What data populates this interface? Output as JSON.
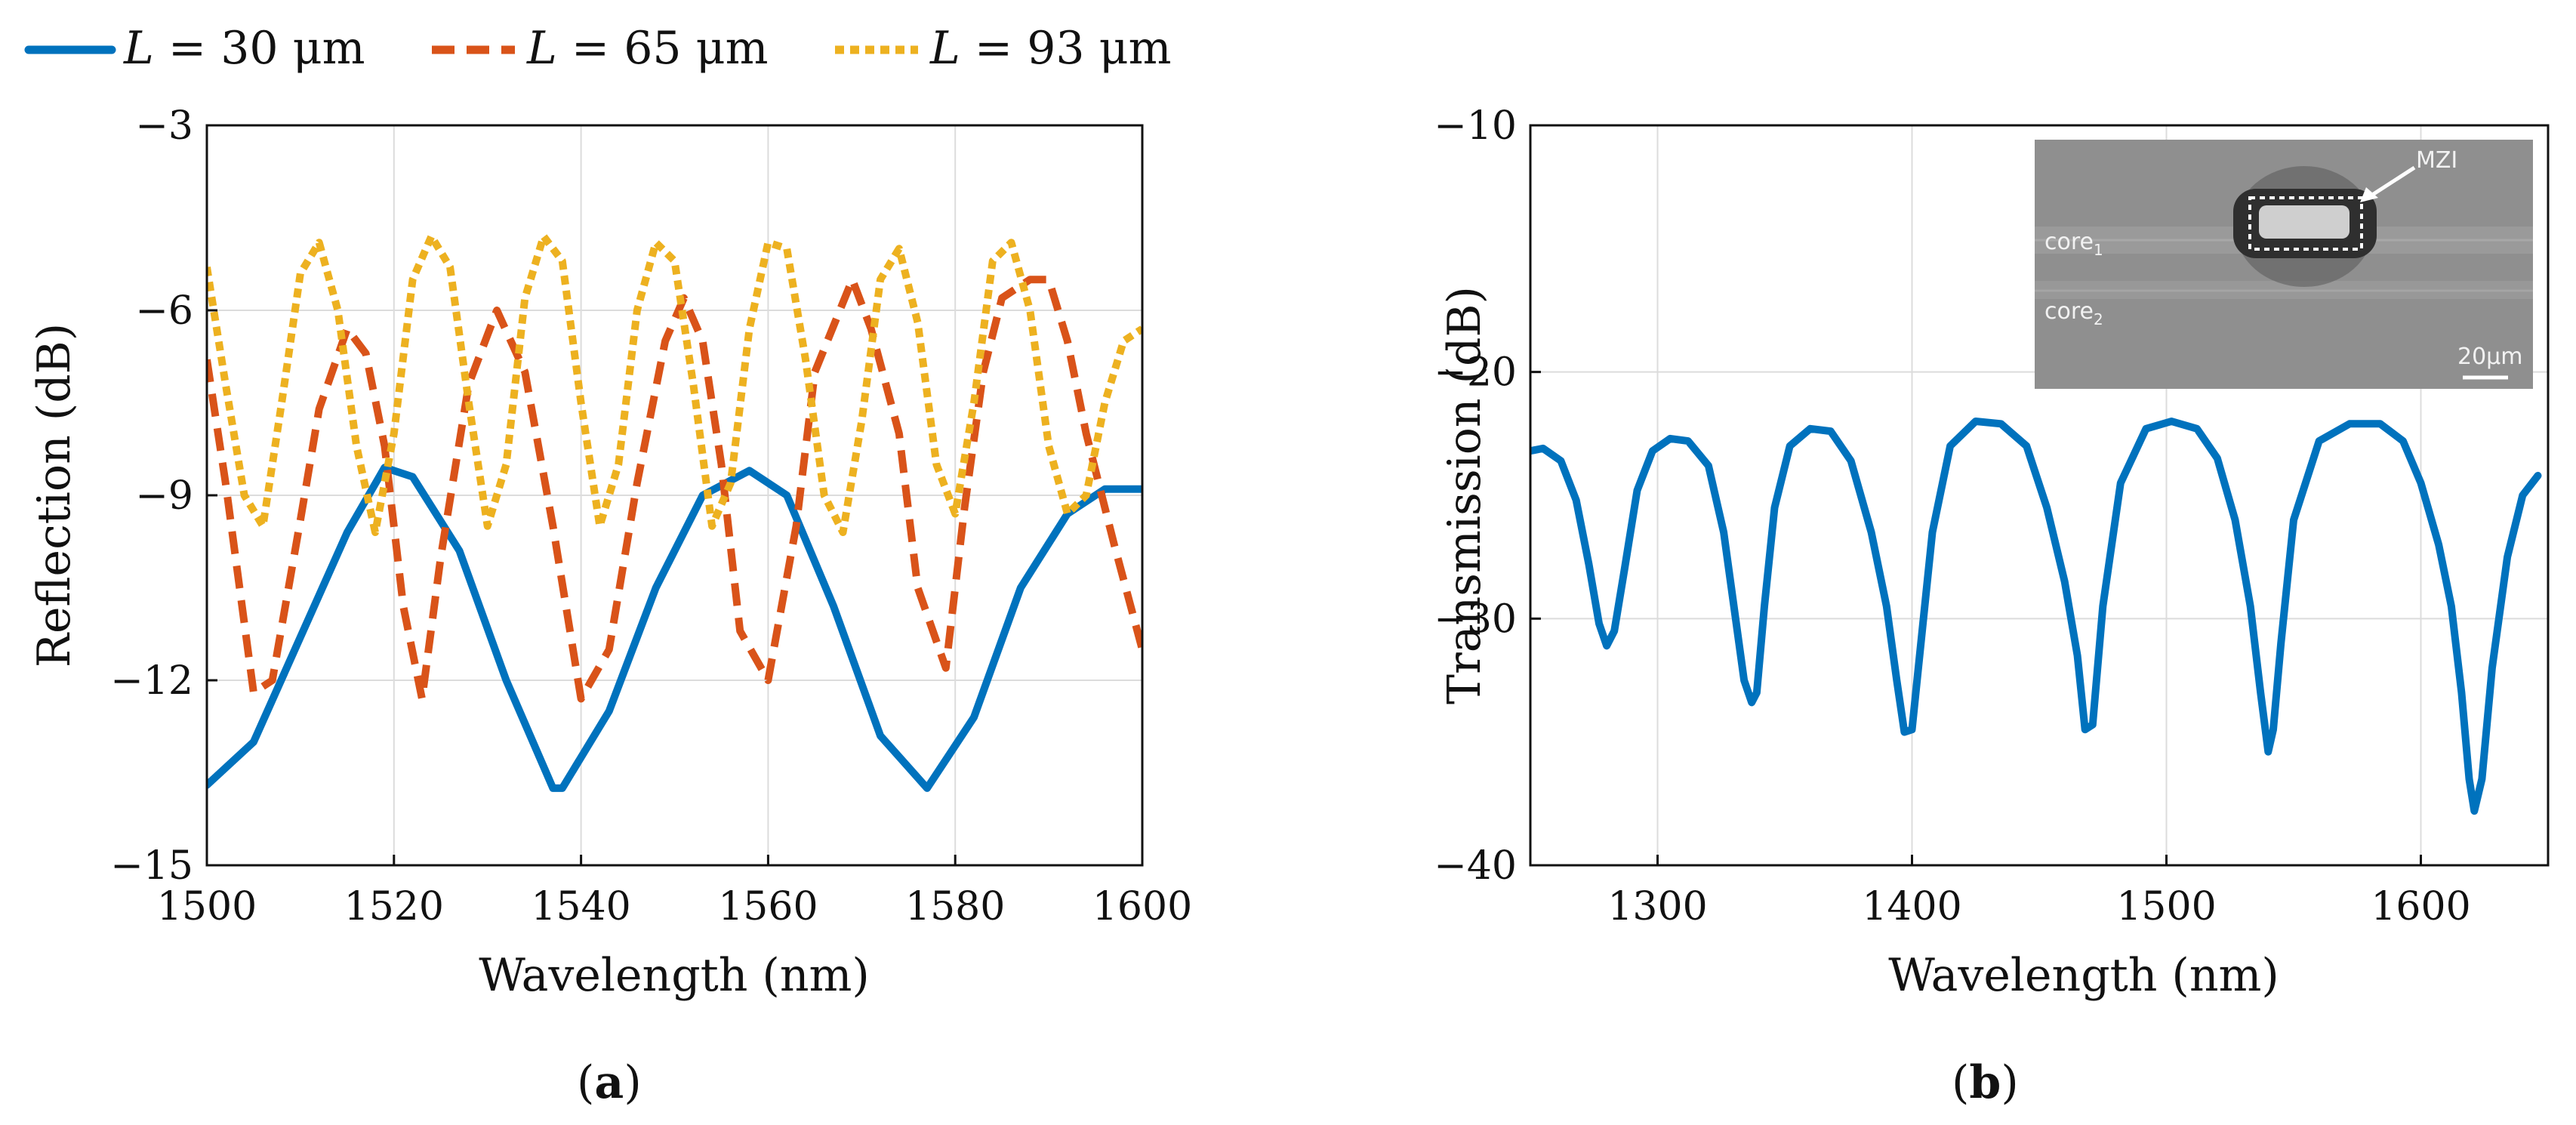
{
  "legend": [
    {
      "prefix": "L",
      "text": " = 30 μm",
      "color": "#0072BD"
    },
    {
      "prefix": "L",
      "text": " = 65 μm",
      "color": "#D95319"
    },
    {
      "prefix": "L",
      "text": " = 93 μm",
      "color": "#EDB120"
    }
  ],
  "inset": {
    "labels": {
      "core1": "core",
      "core1_sub": "1",
      "core2": "core",
      "core2_sub": "2",
      "mzi": "MZI",
      "scale": "20μm"
    }
  },
  "chart_data": [
    {
      "type": "line",
      "panel_label": "(a)",
      "panel_letter": "a",
      "xlabel": "Wavelength (nm)",
      "ylabel": "Reflection (dB)",
      "xlim": [
        1500,
        1600
      ],
      "ylim": [
        -15,
        -3
      ],
      "xticks": [
        1500,
        1520,
        1540,
        1560,
        1580,
        1600
      ],
      "yticks": [
        -15,
        -12,
        -9,
        -6,
        -3
      ],
      "xtick_labels": [
        "1500",
        "1520",
        "1540",
        "1560",
        "1580",
        "1600"
      ],
      "ytick_labels": [
        "−15",
        "−12",
        "−9",
        "−6",
        "−3"
      ],
      "grid": true,
      "legend_position": "top",
      "series": [
        {
          "name": "L = 30 μm",
          "color": "#0072BD",
          "style": "solid",
          "x": [
            1500,
            1505,
            1510,
            1515,
            1519,
            1522,
            1527,
            1532,
            1537,
            1538,
            1543,
            1548,
            1553,
            1558,
            1562,
            1567,
            1572,
            1577,
            1582,
            1587,
            1592,
            1596,
            1600
          ],
          "y": [
            -13.7,
            -13.0,
            -11.3,
            -9.6,
            -8.55,
            -8.7,
            -9.9,
            -12.0,
            -13.75,
            -13.75,
            -12.5,
            -10.5,
            -9.0,
            -8.6,
            -9.0,
            -10.8,
            -12.9,
            -13.75,
            -12.6,
            -10.5,
            -9.3,
            -8.9,
            -8.9
          ]
        },
        {
          "name": "L = 65 μm",
          "color": "#D95319",
          "style": "dashed",
          "x": [
            1500,
            1502,
            1505,
            1507,
            1510,
            1512,
            1515,
            1517,
            1519,
            1521,
            1523,
            1525,
            1528,
            1531,
            1534,
            1537,
            1540,
            1543,
            1546,
            1549,
            1551,
            1553,
            1555,
            1557,
            1560,
            1563,
            1565,
            1569,
            1571,
            1574,
            1576,
            1579,
            1581,
            1583,
            1585,
            1588,
            1590,
            1592,
            1594,
            1597,
            1600
          ],
          "y": [
            -6.8,
            -8.8,
            -12.2,
            -12.0,
            -9.4,
            -7.6,
            -6.3,
            -6.7,
            -8.2,
            -10.8,
            -12.3,
            -10.0,
            -7.2,
            -6.0,
            -7.0,
            -9.5,
            -12.3,
            -11.5,
            -8.8,
            -6.5,
            -5.8,
            -6.5,
            -8.5,
            -11.2,
            -12.0,
            -9.5,
            -7.0,
            -5.5,
            -6.3,
            -8.0,
            -10.5,
            -11.8,
            -9.2,
            -7.0,
            -5.8,
            -5.5,
            -5.5,
            -6.5,
            -8.0,
            -9.8,
            -11.5
          ]
        },
        {
          "name": "L = 93 μm",
          "color": "#EDB120",
          "style": "dotted",
          "x": [
            1500,
            1502,
            1504,
            1506,
            1508,
            1510,
            1512,
            1514,
            1516,
            1518,
            1520,
            1522,
            1524,
            1526,
            1528,
            1530,
            1532,
            1534,
            1536,
            1538,
            1540,
            1542,
            1544,
            1546,
            1548,
            1550,
            1552,
            1554,
            1556,
            1558,
            1560,
            1562,
            1564,
            1566,
            1568,
            1570,
            1572,
            1574,
            1576,
            1578,
            1580,
            1582,
            1584,
            1586,
            1588,
            1590,
            1592,
            1594,
            1596,
            1598,
            1600
          ],
          "y": [
            -5.3,
            -7.2,
            -9.0,
            -9.5,
            -7.5,
            -5.4,
            -4.9,
            -6.0,
            -8.2,
            -9.6,
            -8.0,
            -5.5,
            -4.8,
            -5.3,
            -7.5,
            -9.5,
            -8.5,
            -5.8,
            -4.8,
            -5.2,
            -7.5,
            -9.5,
            -8.5,
            -6.0,
            -4.9,
            -5.2,
            -7.2,
            -9.5,
            -8.8,
            -6.3,
            -4.9,
            -5.0,
            -6.8,
            -9.0,
            -9.6,
            -7.8,
            -5.5,
            -5.0,
            -6.2,
            -8.5,
            -9.3,
            -7.5,
            -5.2,
            -4.9,
            -6.0,
            -8.2,
            -9.3,
            -9.0,
            -7.5,
            -6.5,
            -6.3
          ]
        }
      ]
    },
    {
      "type": "line",
      "panel_label": "(b)",
      "panel_letter": "b",
      "xlabel": "Wavelength (nm)",
      "ylabel": "Transmission (dB)",
      "xlim": [
        1250,
        1650
      ],
      "ylim": [
        -40,
        -10
      ],
      "xticks": [
        1300,
        1400,
        1500,
        1600
      ],
      "yticks": [
        -40,
        -30,
        -20,
        -10
      ],
      "xtick_labels": [
        "1300",
        "1400",
        "1500",
        "1600"
      ],
      "ytick_labels": [
        "−40",
        "−30",
        "−20",
        "−10"
      ],
      "grid": true,
      "series": [
        {
          "color": "#0072BD",
          "style": "solid",
          "x": [
            1250,
            1255,
            1262,
            1268,
            1273,
            1277,
            1280,
            1283,
            1287,
            1292,
            1298,
            1305,
            1312,
            1320,
            1326,
            1330,
            1334,
            1337,
            1339,
            1342,
            1346,
            1352,
            1360,
            1368,
            1376,
            1384,
            1390,
            1394,
            1397,
            1400,
            1403,
            1408,
            1415,
            1425,
            1435,
            1445,
            1453,
            1460,
            1465,
            1468,
            1471,
            1475,
            1482,
            1492,
            1502,
            1512,
            1520,
            1527,
            1533,
            1537,
            1540,
            1542,
            1545,
            1550,
            1560,
            1572,
            1584,
            1593,
            1600,
            1607,
            1612,
            1616,
            1619,
            1621,
            1624,
            1628,
            1634,
            1640,
            1646
          ],
          "y": [
            -23.2,
            -23.1,
            -23.6,
            -25.2,
            -27.8,
            -30.2,
            -31.1,
            -30.5,
            -28.0,
            -24.8,
            -23.2,
            -22.7,
            -22.8,
            -23.8,
            -26.5,
            -29.5,
            -32.5,
            -33.4,
            -33.0,
            -29.5,
            -25.5,
            -23.0,
            -22.3,
            -22.4,
            -23.6,
            -26.5,
            -29.5,
            -32.5,
            -34.6,
            -34.5,
            -31.5,
            -26.5,
            -23.0,
            -22.0,
            -22.1,
            -23.0,
            -25.5,
            -28.5,
            -31.5,
            -34.5,
            -34.3,
            -29.5,
            -24.5,
            -22.3,
            -22.0,
            -22.3,
            -23.5,
            -26.0,
            -29.5,
            -33.0,
            -35.4,
            -34.5,
            -31.0,
            -26.0,
            -22.8,
            -22.1,
            -22.1,
            -22.8,
            -24.5,
            -27.0,
            -29.5,
            -33.0,
            -36.5,
            -37.8,
            -36.5,
            -32.0,
            -27.5,
            -25.0,
            -24.2
          ]
        }
      ]
    }
  ]
}
